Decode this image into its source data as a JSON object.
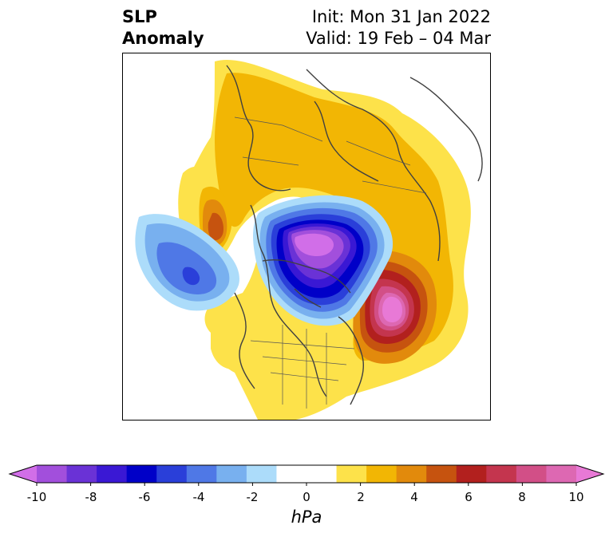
{
  "title": {
    "left_line1": "SLP",
    "left_line2": "Anomaly",
    "right_line1": "Init: Mon 31 Jan 2022",
    "right_line2": "Valid: 19 Feb – 04 Mar"
  },
  "colorbar": {
    "unit_label": "hPa",
    "ticks": [
      "-10",
      "-8",
      "-6",
      "-4",
      "-2",
      "0",
      "2",
      "4",
      "6",
      "8",
      "10"
    ],
    "colors": [
      "#d16ee8",
      "#a24fdc",
      "#6a32d6",
      "#3a18d4",
      "#0000c8",
      "#2a3fd9",
      "#4f78e6",
      "#78b0ef",
      "#acdcfa",
      "#ffffff",
      "#ffffff",
      "#fde24a",
      "#f2b604",
      "#e28a0c",
      "#c6530f",
      "#b2201e",
      "#c4354e",
      "#d24f87",
      "#dd68b2",
      "#e879d6"
    ]
  },
  "map": {
    "projection": "north-polar-stereographic",
    "features": [
      "positive anomaly over North Atlantic (>10 hPa)",
      "negative anomaly over Arctic / northern Canada (<-8 hPa)",
      "negative anomaly over North Pacific"
    ]
  }
}
